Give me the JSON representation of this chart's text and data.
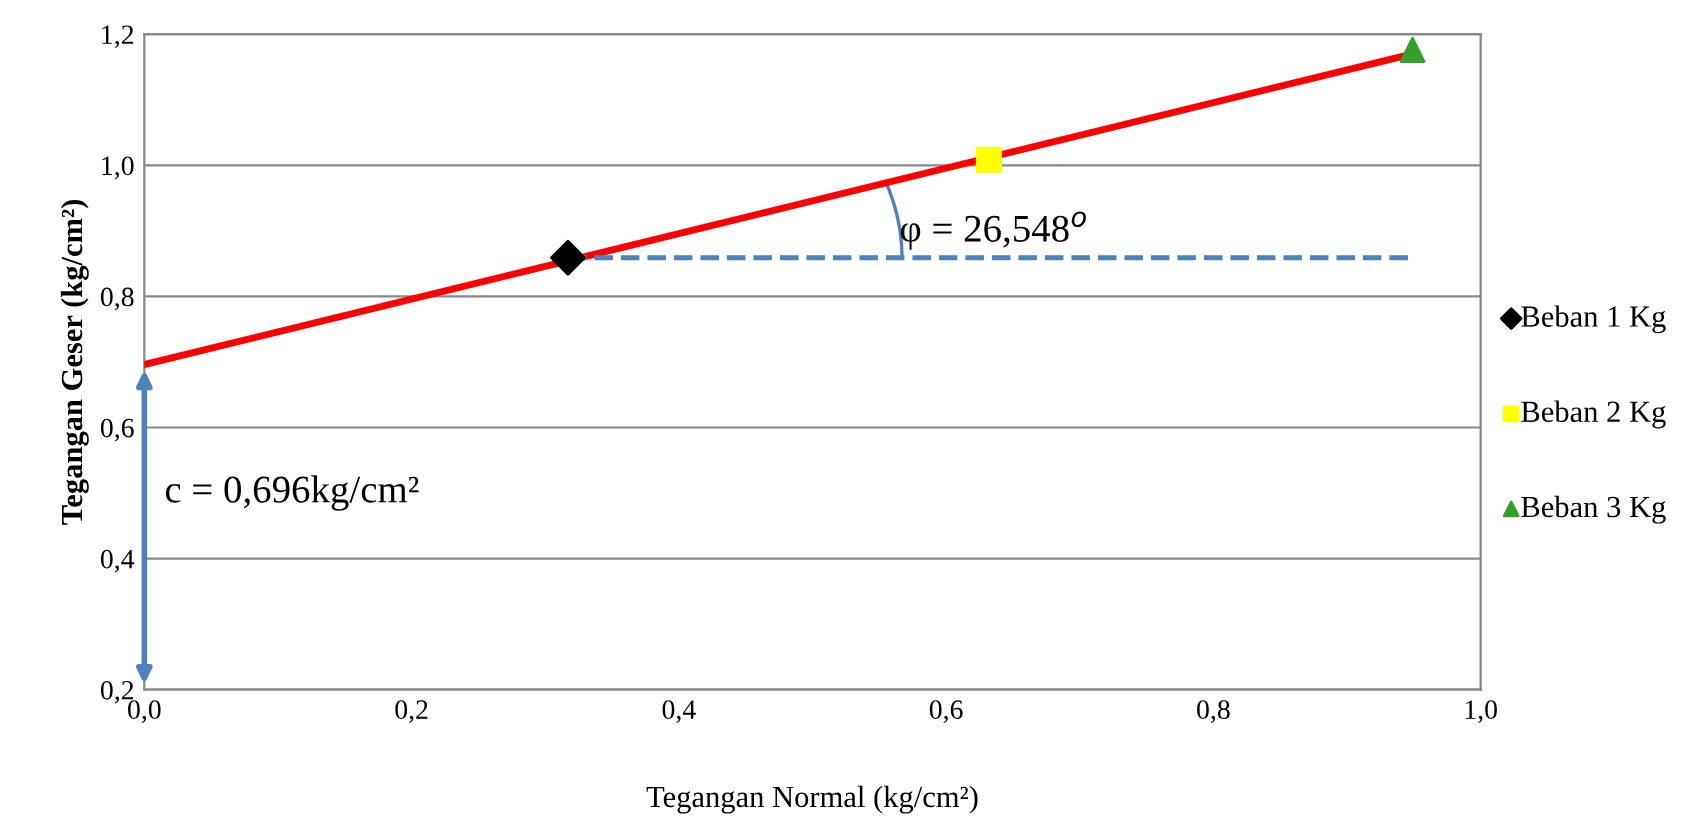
{
  "chart_data": {
    "type": "scatter",
    "xlabel": "Tegangan Normal (kg/cm²)",
    "ylabel": "Tegangan Geser (kg/cm²)",
    "xlim": [
      0,
      1.0
    ],
    "ylim": [
      0.2,
      1.2
    ],
    "xticks": [
      {
        "value": 0,
        "label": "0,0"
      },
      {
        "value": 0.2,
        "label": "0,2"
      },
      {
        "value": 0.4,
        "label": "0,4"
      },
      {
        "value": 0.6,
        "label": "0,6"
      },
      {
        "value": 0.8,
        "label": "0,8"
      },
      {
        "value": 1.0,
        "label": "1,0"
      }
    ],
    "yticks": [
      {
        "value": 0.2,
        "label": "0,2"
      },
      {
        "value": 0.4,
        "label": "0,4"
      },
      {
        "value": 0.6,
        "label": "0,6"
      },
      {
        "value": 0.8,
        "label": "0,8"
      },
      {
        "value": 1.0,
        "label": "1,0"
      },
      {
        "value": 1.2,
        "label": "1,2"
      }
    ],
    "grid": "y",
    "legend": "right",
    "series": [
      {
        "type": "line",
        "color": "#ff0000",
        "x": [
          0,
          0.949
        ],
        "values": [
          0.696,
          1.17
        ],
        "marker": "none",
        "line_style": "solid"
      },
      {
        "type": "line",
        "color": "#4f81bd",
        "x": [
          0.317,
          0.95
        ],
        "values": [
          0.859,
          0.859
        ],
        "marker": "none",
        "line_style": "dashed"
      },
      {
        "name": "Beban 1 Kg",
        "color": "#000000",
        "x": [
          0.317
        ],
        "values": [
          0.859
        ],
        "marker": "diamond"
      },
      {
        "name": "Beban 2 Kg",
        "color": "#ffff00",
        "x": [
          0.632
        ],
        "values": [
          1.008
        ],
        "marker": "square"
      },
      {
        "name": "Beban 3 Kg",
        "color": "#33a02c",
        "x": [
          0.949
        ],
        "values": [
          1.176
        ],
        "marker": "triangle"
      }
    ],
    "annotations": [
      "φ = 26,548$^{o}$",
      {
        "text": "c = 0,696kg/cm²",
        "x": 0,
        "y": 0.696
      }
    ]
  }
}
